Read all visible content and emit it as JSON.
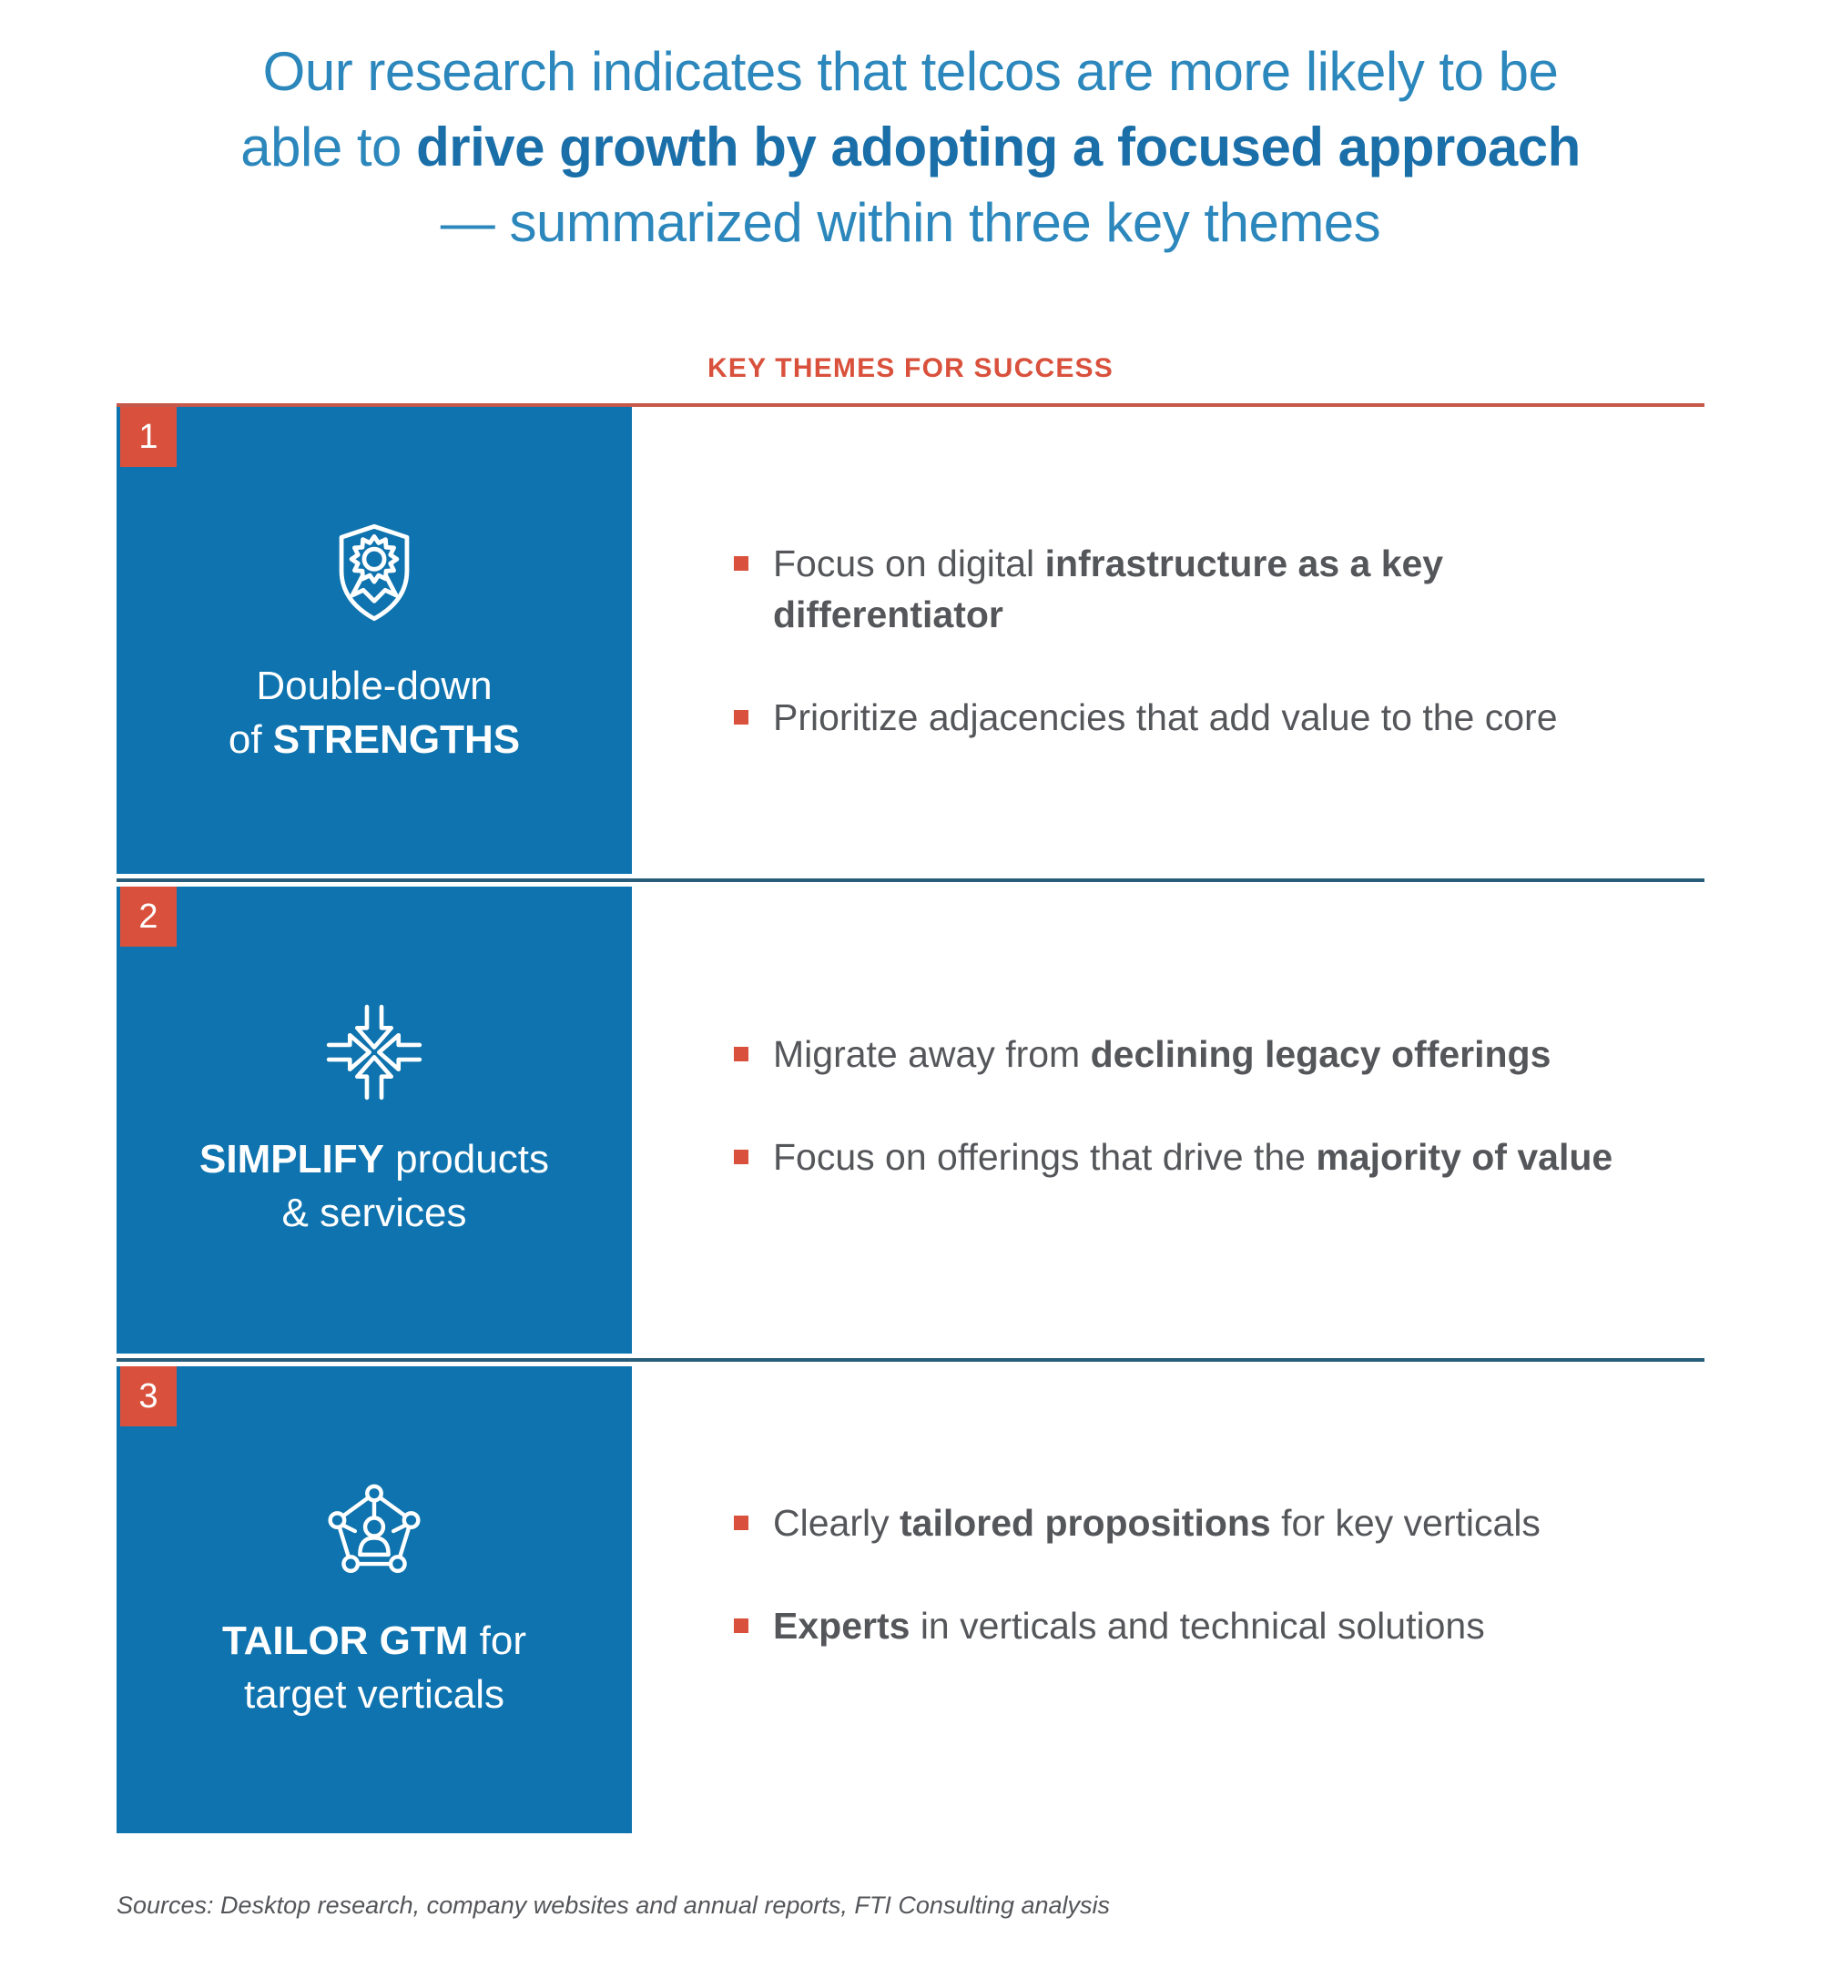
{
  "colors": {
    "blue": "#0e73ae",
    "red": "#d9513c",
    "lineRed": "#c5584a",
    "navy": "#275d7a",
    "gray": "#54565a",
    "titleBlue": "#2b87bc",
    "titleBoldBlue": "#1a6fa9"
  },
  "title": {
    "lines": [
      {
        "segments": [
          {
            "text": "Our research indicates that telcos are more likely to be",
            "bold": false
          }
        ]
      },
      {
        "segments": [
          {
            "text": "able to ",
            "bold": false
          },
          {
            "text": "drive growth by adopting a focused approach",
            "bold": true
          }
        ]
      },
      {
        "segments": [
          {
            "text": "— summarized within three key themes",
            "bold": false
          }
        ]
      }
    ]
  },
  "table_header": {
    "label": "KEY THEMES FOR SUCCESS"
  },
  "sections": [
    {
      "number": "1",
      "icon": "shield-award-icon",
      "label_lines": [
        {
          "segments": [
            {
              "text": "Double-down",
              "bold": false
            }
          ]
        },
        {
          "segments": [
            {
              "text": "of ",
              "bold": false
            },
            {
              "text": "STRENGTHS",
              "bold": true
            }
          ]
        }
      ],
      "bullets": [
        {
          "segments": [
            {
              "text": "Focus on digital ",
              "bold": false
            },
            {
              "text": "infrastructure as a key differentiator",
              "bold": true
            }
          ]
        },
        {
          "segments": [
            {
              "text": "Prioritize adjacencies that add value to the core",
              "bold": false
            }
          ]
        }
      ]
    },
    {
      "number": "2",
      "icon": "converging-arrows-icon",
      "label_lines": [
        {
          "segments": [
            {
              "text": "SIMPLIFY",
              "bold": true
            },
            {
              "text": " products",
              "bold": false
            }
          ]
        },
        {
          "segments": [
            {
              "text": "& services",
              "bold": false
            }
          ]
        }
      ],
      "bullets": [
        {
          "segments": [
            {
              "text": "Migrate away from ",
              "bold": false
            },
            {
              "text": "declining legacy offerings",
              "bold": true
            }
          ]
        },
        {
          "segments": [
            {
              "text": "Focus on offerings that drive the ",
              "bold": false
            },
            {
              "text": "majority of value",
              "bold": true
            }
          ]
        }
      ]
    },
    {
      "number": "3",
      "icon": "pentagon-network-icon",
      "label_lines": [
        {
          "segments": [
            {
              "text": "TAILOR GTM",
              "bold": true
            },
            {
              "text": " for",
              "bold": false
            }
          ]
        },
        {
          "segments": [
            {
              "text": "target verticals",
              "bold": false
            }
          ]
        }
      ],
      "bullets": [
        {
          "segments": [
            {
              "text": "Clearly ",
              "bold": false
            },
            {
              "text": "tailored propositions",
              "bold": true
            },
            {
              "text": " for key verticals",
              "bold": false
            }
          ]
        },
        {
          "segments": [
            {
              "text": "Experts",
              "bold": true
            },
            {
              "text": " in verticals and technical solutions",
              "bold": false
            }
          ]
        }
      ]
    }
  ],
  "footer": {
    "sources": "Sources: Desktop research, company websites and annual reports, FTI Consulting analysis"
  }
}
